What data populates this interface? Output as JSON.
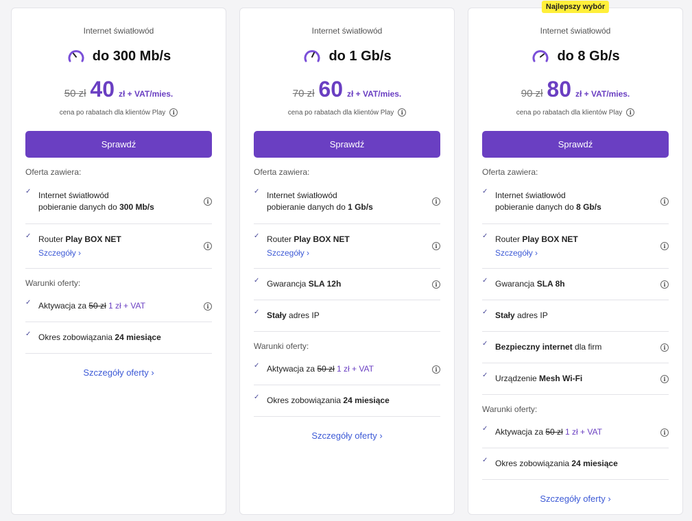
{
  "plans": [
    {
      "badge": "",
      "subtitle": "Internet światłowód",
      "speed": "do 300 Mb/s",
      "old_price": "50 zł",
      "price": "40",
      "unit": "zł + VAT/mies.",
      "note": "cena po rabatach dla klientów Play",
      "button": "Sprawdź",
      "offer_label": "Oferta zawiera:",
      "conditions_label": "Warunki oferty:",
      "details": "Szczegóły oferty",
      "items": {
        "internet_line1": "Internet światłowód",
        "internet_line2": "pobieranie danych do ",
        "internet_bold": "300 Mb/s",
        "router_prefix": "Router ",
        "router_bold": "Play BOX NET",
        "router_link": "Szczegóły",
        "activation_prefix": "Aktywacja za ",
        "activation_strike": "50 zł",
        "activation_price": " 1 zł + VAT",
        "commitment_prefix": "Okres zobowiązania ",
        "commitment_bold": "24 miesiące"
      }
    },
    {
      "badge": "",
      "subtitle": "Internet światłowód",
      "speed": "do 1 Gb/s",
      "old_price": "70 zł",
      "price": "60",
      "unit": "zł + VAT/mies.",
      "note": "cena po rabatach dla klientów Play",
      "button": "Sprawdź",
      "offer_label": "Oferta zawiera:",
      "conditions_label": "Warunki oferty:",
      "details": "Szczegóły oferty",
      "items": {
        "internet_line1": "Internet światłowód",
        "internet_line2": "pobieranie danych do ",
        "internet_bold": "1 Gb/s",
        "router_prefix": "Router ",
        "router_bold": "Play BOX NET",
        "router_link": "Szczegóły",
        "sla_prefix": "Gwarancja ",
        "sla_bold": "SLA 12h",
        "ip_bold": "Stały",
        "ip_suffix": " adres IP",
        "activation_prefix": "Aktywacja za ",
        "activation_strike": "50 zł",
        "activation_price": " 1 zł + VAT",
        "commitment_prefix": "Okres zobowiązania ",
        "commitment_bold": "24 miesiące"
      }
    },
    {
      "badge": "Najlepszy wybór",
      "subtitle": "Internet światłowód",
      "speed": "do 8 Gb/s",
      "old_price": "90 zł",
      "price": "80",
      "unit": "zł + VAT/mies.",
      "note": "cena po rabatach dla klientów Play",
      "button": "Sprawdź",
      "offer_label": "Oferta zawiera:",
      "conditions_label": "Warunki oferty:",
      "details": "Szczegóły oferty",
      "items": {
        "internet_line1": "Internet światłowód",
        "internet_line2": "pobieranie danych do ",
        "internet_bold": "8 Gb/s",
        "router_prefix": "Router ",
        "router_bold": "Play BOX NET",
        "router_link": "Szczegóły",
        "sla_prefix": "Gwarancja ",
        "sla_bold": "SLA 8h",
        "ip_bold": "Stały",
        "ip_suffix": " adres IP",
        "secure_bold": "Bezpieczny internet",
        "secure_suffix": " dla firm",
        "mesh_prefix": "Urządzenie ",
        "mesh_bold": "Mesh Wi-Fi",
        "activation_prefix": "Aktywacja za ",
        "activation_strike": "50 zł",
        "activation_price": " 1 zł + VAT",
        "commitment_prefix": "Okres zobowiązania ",
        "commitment_bold": "24 miesiące"
      }
    }
  ],
  "icons": {
    "speed": "speedometer-icon",
    "check": "check-icon",
    "info": "info-icon",
    "chevron": "chevron-right-icon"
  },
  "colors": {
    "accent": "#6a3fc2",
    "link": "#3d5ad6",
    "badge": "#ffef3a"
  }
}
